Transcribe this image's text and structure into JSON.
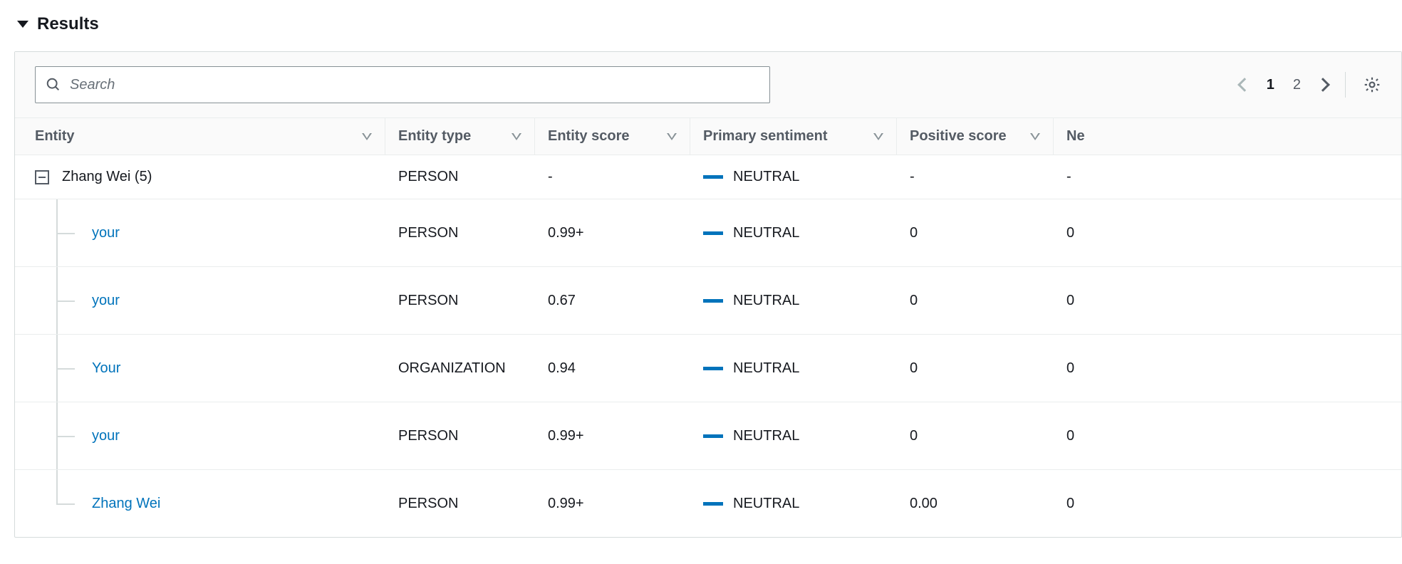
{
  "section_title": "Results",
  "search": {
    "placeholder": "Search"
  },
  "pagination": {
    "pages": [
      "1",
      "2"
    ],
    "current": 0
  },
  "columns": {
    "entity": "Entity",
    "type": "Entity type",
    "score": "Entity score",
    "sentiment": "Primary sentiment",
    "positive": "Positive score",
    "neutral": "Ne"
  },
  "group": {
    "label": "Zhang Wei (5)",
    "type": "PERSON",
    "score": "-",
    "sentiment": "NEUTRAL",
    "positive": "-",
    "neutral": "-"
  },
  "rows": [
    {
      "label": "your",
      "type": "PERSON",
      "score": "0.99+",
      "sentiment": "NEUTRAL",
      "positive": "0",
      "neutral": "0",
      "last": false
    },
    {
      "label": "your",
      "type": "PERSON",
      "score": "0.67",
      "sentiment": "NEUTRAL",
      "positive": "0",
      "neutral": "0",
      "last": false
    },
    {
      "label": "Your",
      "type": "ORGANIZATION",
      "score": "0.94",
      "sentiment": "NEUTRAL",
      "positive": "0",
      "neutral": "0",
      "last": false
    },
    {
      "label": "your",
      "type": "PERSON",
      "score": "0.99+",
      "sentiment": "NEUTRAL",
      "positive": "0",
      "neutral": "0",
      "last": false
    },
    {
      "label": "Zhang Wei",
      "type": "PERSON",
      "score": "0.99+",
      "sentiment": "NEUTRAL",
      "positive": "0.00",
      "neutral": "0",
      "last": true
    }
  ],
  "colors": {
    "link": "#0073bb",
    "sentiment_bar": "#0073bb",
    "header_text": "#545b64",
    "border": "#eaeded"
  }
}
